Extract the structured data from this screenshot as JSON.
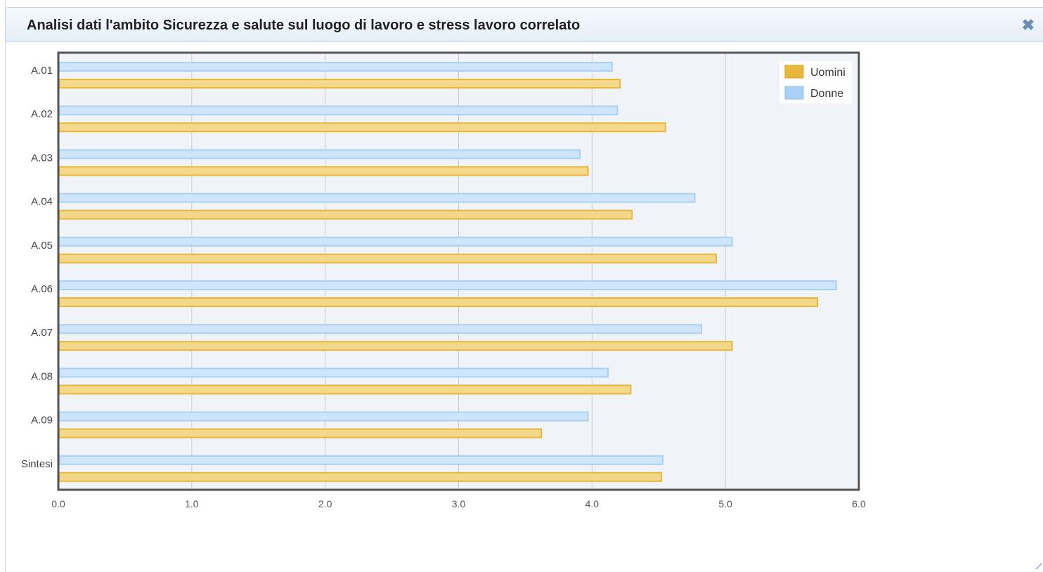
{
  "window": {
    "title": "Analisi dati l'ambito Sicurezza e salute sul luogo di lavoro e stress lavoro correlato",
    "close_label": "✖"
  },
  "colors": {
    "uomini_fill": "#f3d78a",
    "uomini_stroke": "#e8b83a",
    "donne_fill": "#cfe5fb",
    "donne_stroke": "#a9d1f5",
    "plot_bg": "#f0f4f8",
    "grid": "#cccccc",
    "frame": "#555555"
  },
  "chart_data": {
    "type": "bar",
    "orientation": "horizontal",
    "title": "",
    "xlabel": "",
    "ylabel": "",
    "xlim": [
      0,
      6
    ],
    "xticks": [
      "0.0",
      "1.0",
      "2.0",
      "3.0",
      "4.0",
      "5.0",
      "6.0"
    ],
    "grid": true,
    "legend_position": "top-right",
    "categories": [
      "A.01",
      "A.02",
      "A.03",
      "A.04",
      "A.05",
      "A.06",
      "A.07",
      "A.08",
      "A.09",
      "Sintesi"
    ],
    "series": [
      {
        "name": "Donne",
        "values": [
          4.15,
          4.19,
          3.91,
          4.77,
          5.05,
          5.83,
          4.82,
          4.12,
          3.97,
          4.53
        ]
      },
      {
        "name": "Uomini",
        "values": [
          4.21,
          4.55,
          3.97,
          4.3,
          4.93,
          5.69,
          5.05,
          4.29,
          3.62,
          4.52
        ]
      }
    ],
    "legend_entries": [
      "Uomini",
      "Donne"
    ]
  }
}
